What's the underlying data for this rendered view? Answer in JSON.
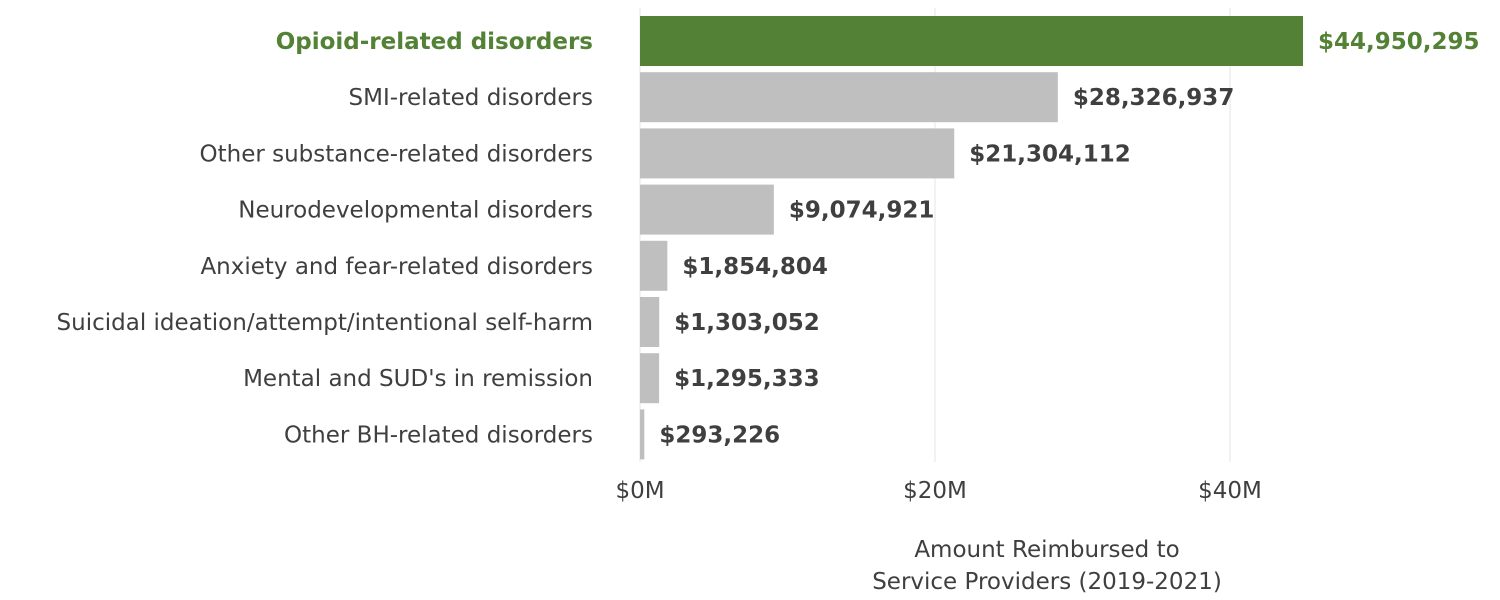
{
  "chart_data": {
    "type": "bar",
    "orientation": "horizontal",
    "categories": [
      "Opioid-related disorders",
      "SMI-related disorders",
      "Other substance-related disorders",
      "Neurodevelopmental disorders",
      "Anxiety and fear-related disorders",
      "Suicidal ideation/attempt/intentional self-harm",
      "Mental and SUD's in remission",
      "Other BH-related disorders"
    ],
    "values": [
      44950295,
      28326937,
      21304112,
      9074921,
      1854804,
      1303052,
      1295333,
      293226
    ],
    "value_labels": [
      "$44,950,295",
      "$28,326,937",
      "$21,304,112",
      "$9,074,921",
      "$1,854,804",
      "$1,303,052",
      "$1,295,333",
      "$293,226"
    ],
    "highlight_index": 0,
    "colors": {
      "highlight": "#538135",
      "default": "#bfbfbf",
      "text": "#3f3f3f",
      "grid": "#e6e6e6"
    },
    "xlim": [
      0,
      48000000
    ],
    "ticks": [
      0,
      20000000,
      40000000
    ],
    "tick_labels": [
      "$0M",
      "$20M",
      "$40M"
    ],
    "xlabel_lines": [
      "Amount Reimbursed to",
      "Service Providers (2019-2021)"
    ],
    "grid": "vertical",
    "legend": "none"
  }
}
